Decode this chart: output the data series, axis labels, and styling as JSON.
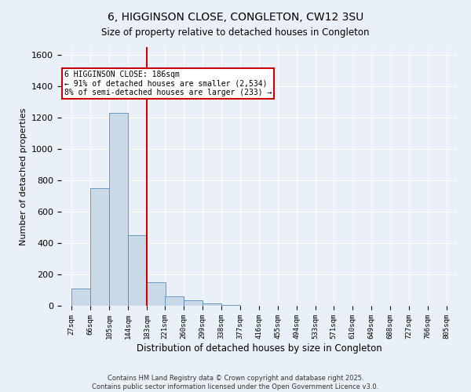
{
  "title": "6, HIGGINSON CLOSE, CONGLETON, CW12 3SU",
  "subtitle": "Size of property relative to detached houses in Congleton",
  "xlabel": "Distribution of detached houses by size in Congleton",
  "ylabel": "Number of detached properties",
  "bar_heights": [
    110,
    750,
    1230,
    450,
    150,
    60,
    35,
    15,
    5,
    0,
    0,
    0,
    0,
    0,
    0,
    0,
    0,
    0,
    0,
    0
  ],
  "bin_edges": [
    27,
    66,
    105,
    144,
    183,
    221,
    260,
    299,
    338,
    377,
    416,
    455,
    494,
    533,
    571,
    610,
    649,
    688,
    727,
    766,
    805
  ],
  "tick_labels": [
    "27sqm",
    "66sqm",
    "105sqm",
    "144sqm",
    "183sqm",
    "221sqm",
    "260sqm",
    "299sqm",
    "338sqm",
    "377sqm",
    "416sqm",
    "455sqm",
    "494sqm",
    "533sqm",
    "571sqm",
    "610sqm",
    "649sqm",
    "688sqm",
    "727sqm",
    "766sqm",
    "805sqm"
  ],
  "bar_color": "#c9d9e8",
  "bar_edge_color": "#5b8db8",
  "vline_x": 183,
  "vline_color": "#cc0000",
  "ylim": [
    0,
    1650
  ],
  "yticks": [
    0,
    200,
    400,
    600,
    800,
    1000,
    1200,
    1400,
    1600
  ],
  "annotation_text": "6 HIGGINSON CLOSE: 186sqm\n← 91% of detached houses are smaller (2,534)\n8% of semi-detached houses are larger (233) →",
  "annotation_box_edgecolor": "#cc0000",
  "bg_color": "#eaf0f8",
  "grid_color": "#ffffff",
  "footnote1": "Contains HM Land Registry data © Crown copyright and database right 2025.",
  "footnote2": "Contains public sector information licensed under the Open Government Licence v3.0."
}
